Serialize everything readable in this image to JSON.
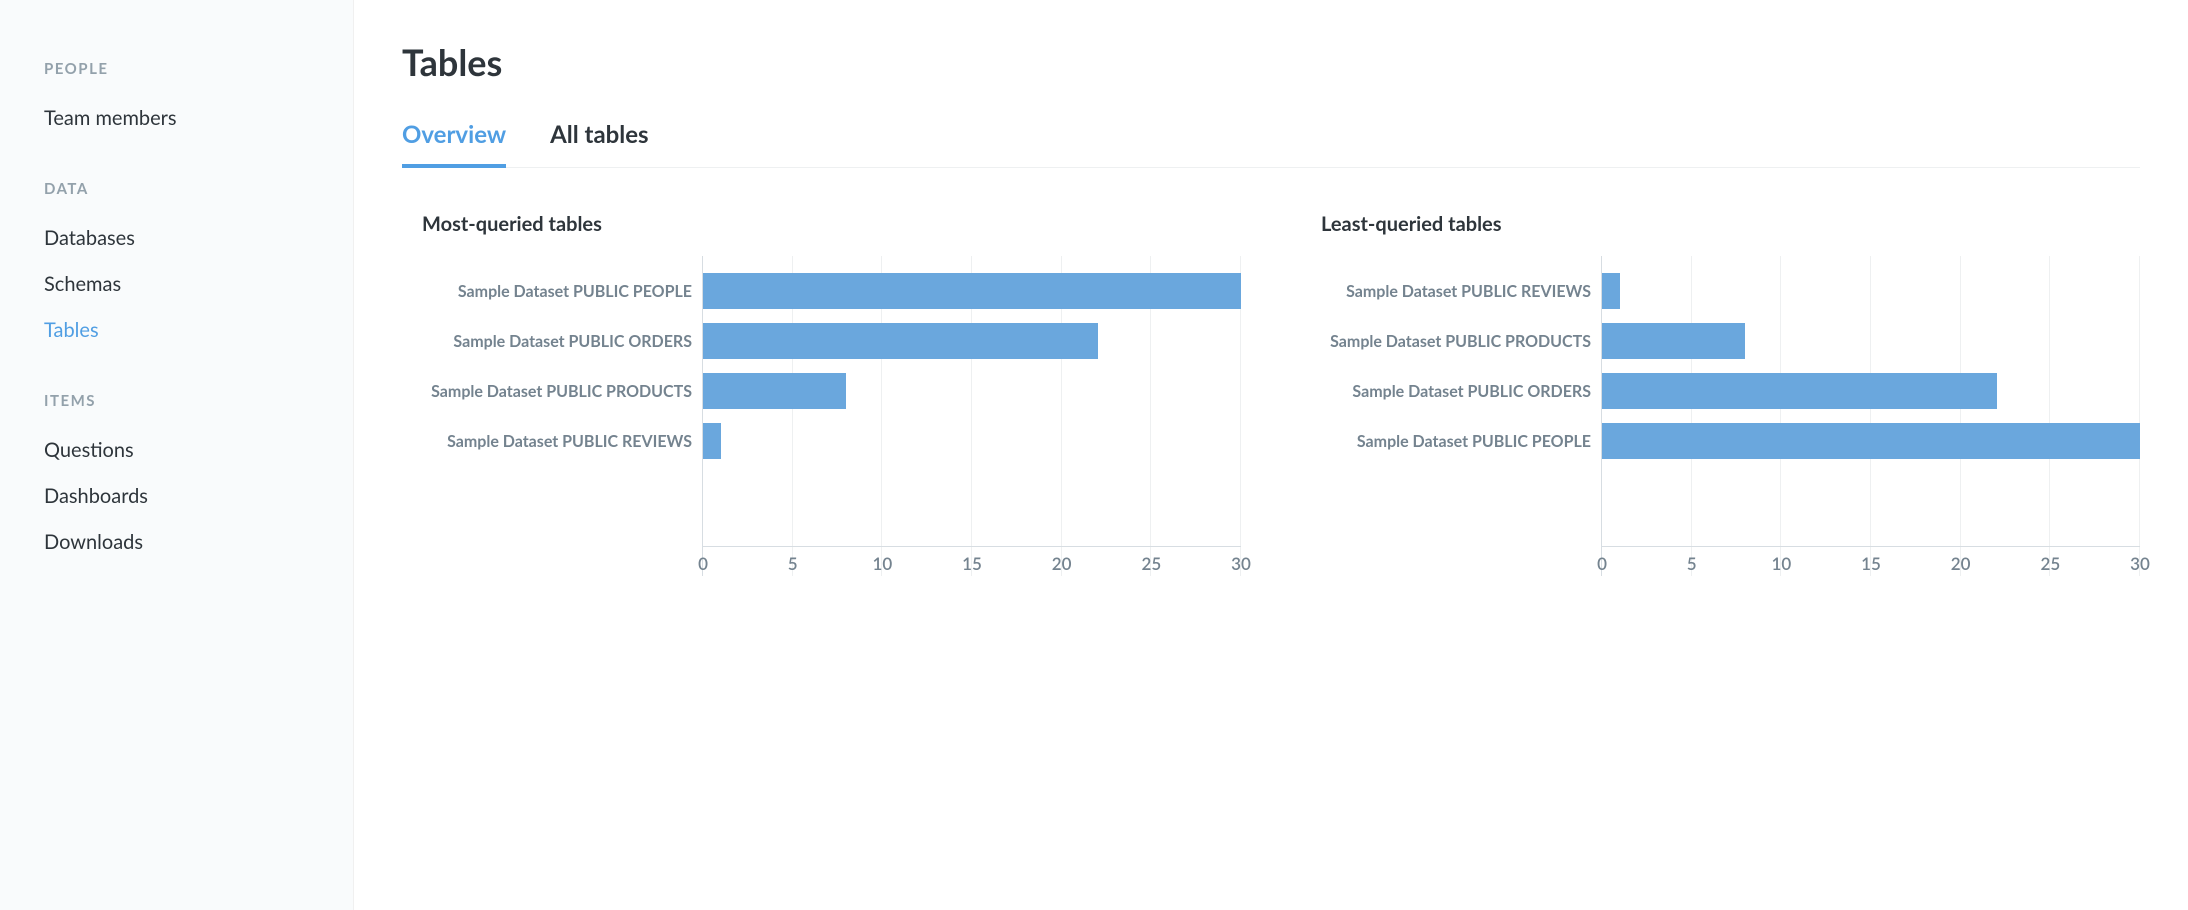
{
  "sidebar": {
    "sections": [
      {
        "heading": "PEOPLE",
        "items": [
          {
            "label": "Team members",
            "active": false
          }
        ]
      },
      {
        "heading": "DATA",
        "items": [
          {
            "label": "Databases",
            "active": false
          },
          {
            "label": "Schemas",
            "active": false
          },
          {
            "label": "Tables",
            "active": true
          }
        ]
      },
      {
        "heading": "ITEMS",
        "items": [
          {
            "label": "Questions",
            "active": false
          },
          {
            "label": "Dashboards",
            "active": false
          },
          {
            "label": "Downloads",
            "active": false
          }
        ]
      }
    ]
  },
  "main": {
    "title": "Tables",
    "tabs": [
      {
        "label": "Overview",
        "active": true
      },
      {
        "label": "All tables",
        "active": false
      }
    ],
    "charts": [
      {
        "title": "Most-queried tables",
        "type": "bar-horizontal",
        "bar_color": "#6aa7dd",
        "grid_color": "#eef0f1",
        "axis_color": "#d7dde2",
        "label_color": "#74838f",
        "label_fontsize": 16,
        "tick_fontsize": 17,
        "xlim": [
          0,
          30
        ],
        "xtick_step": 5,
        "xticks": [
          0,
          5,
          10,
          15,
          20,
          25,
          30
        ],
        "rows": [
          {
            "label": "Sample Dataset PUBLIC PEOPLE",
            "value": 30
          },
          {
            "label": "Sample Dataset PUBLIC ORDERS",
            "value": 22
          },
          {
            "label": "Sample Dataset PUBLIC PRODUCTS",
            "value": 8
          },
          {
            "label": "Sample Dataset PUBLIC REVIEWS",
            "value": 1
          }
        ]
      },
      {
        "title": "Least-queried tables",
        "type": "bar-horizontal",
        "bar_color": "#6aa7dd",
        "grid_color": "#eef0f1",
        "axis_color": "#d7dde2",
        "label_color": "#74838f",
        "label_fontsize": 16,
        "tick_fontsize": 17,
        "xlim": [
          0,
          30
        ],
        "xtick_step": 5,
        "xticks": [
          0,
          5,
          10,
          15,
          20,
          25,
          30
        ],
        "rows": [
          {
            "label": "Sample Dataset PUBLIC REVIEWS",
            "value": 1
          },
          {
            "label": "Sample Dataset PUBLIC PRODUCTS",
            "value": 8
          },
          {
            "label": "Sample Dataset PUBLIC ORDERS",
            "value": 22
          },
          {
            "label": "Sample Dataset PUBLIC PEOPLE",
            "value": 30
          }
        ]
      }
    ]
  },
  "colors": {
    "accent": "#509ee3",
    "text": "#2e353b",
    "muted": "#74838f",
    "heading_muted": "#93a1ab",
    "sidebar_bg": "#f9fbfc",
    "border": "#eef0f1"
  }
}
